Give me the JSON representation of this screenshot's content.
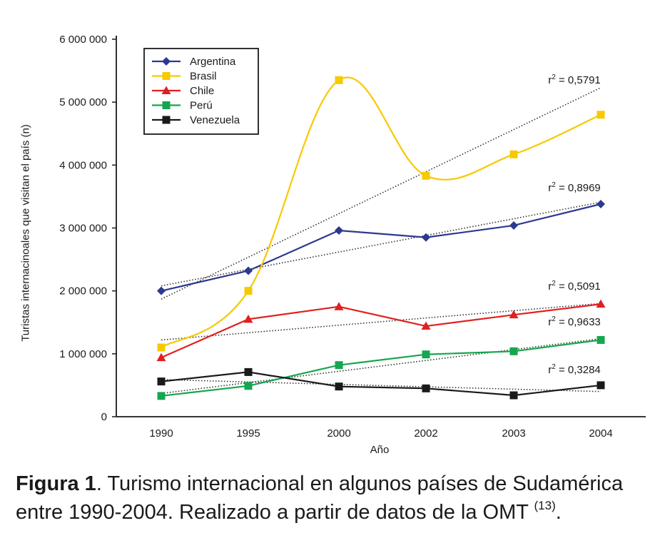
{
  "chart_data": {
    "type": "line",
    "categories": [
      "1990",
      "1995",
      "2000",
      "2002",
      "2003",
      "2004"
    ],
    "xlabel": "Año",
    "ylabel": "Turistas internacinoales que visitan el país (n)",
    "ylim": [
      0,
      6000000
    ],
    "yticks": [
      0,
      1000000,
      2000000,
      3000000,
      4000000,
      5000000,
      6000000
    ],
    "ytick_labels": [
      "0",
      "1 000 000",
      "2 000 000",
      "3 000 000",
      "4 000 000",
      "5 000 000",
      "6 000 000"
    ],
    "legend_position": "top-left",
    "grid": false,
    "series": [
      {
        "name": "Argentina",
        "color": "#2b3990",
        "marker": "diamond",
        "values": [
          2000000,
          2320000,
          2960000,
          2850000,
          3040000,
          3380000
        ],
        "r2": "0,8969",
        "trend": [
          2080000,
          3410000
        ]
      },
      {
        "name": "Brasil",
        "color": "#f7c900",
        "marker": "square",
        "values": [
          1100000,
          2000000,
          5350000,
          3830000,
          4170000,
          4800000
        ],
        "r2": "0,5791",
        "trend": [
          1870000,
          5230000
        ]
      },
      {
        "name": "Chile",
        "color": "#e02020",
        "marker": "triangle",
        "values": [
          940000,
          1550000,
          1750000,
          1440000,
          1620000,
          1790000
        ],
        "r2": "0,5091",
        "trend": [
          1220000,
          1800000
        ]
      },
      {
        "name": "Perú",
        "color": "#15a650",
        "marker": "square",
        "values": [
          330000,
          490000,
          820000,
          990000,
          1040000,
          1220000
        ],
        "r2": "0,9633",
        "trend": [
          370000,
          1240000
        ]
      },
      {
        "name": "Venezuela",
        "color": "#1a1a1a",
        "marker": "square",
        "values": [
          560000,
          710000,
          480000,
          450000,
          340000,
          500000
        ],
        "r2": "0,3284",
        "trend": [
          590000,
          400000
        ]
      }
    ]
  },
  "r2_prefix": "r",
  "r2_sup": "2",
  "r2_eq": " = ",
  "caption": {
    "bold": "Figura 1",
    "text": ". Turismo internacional en algunos países de Sudamérica entre 1990-2004. Realizado a partir de datos de la OMT ",
    "ref": "(13)",
    "end": "."
  }
}
